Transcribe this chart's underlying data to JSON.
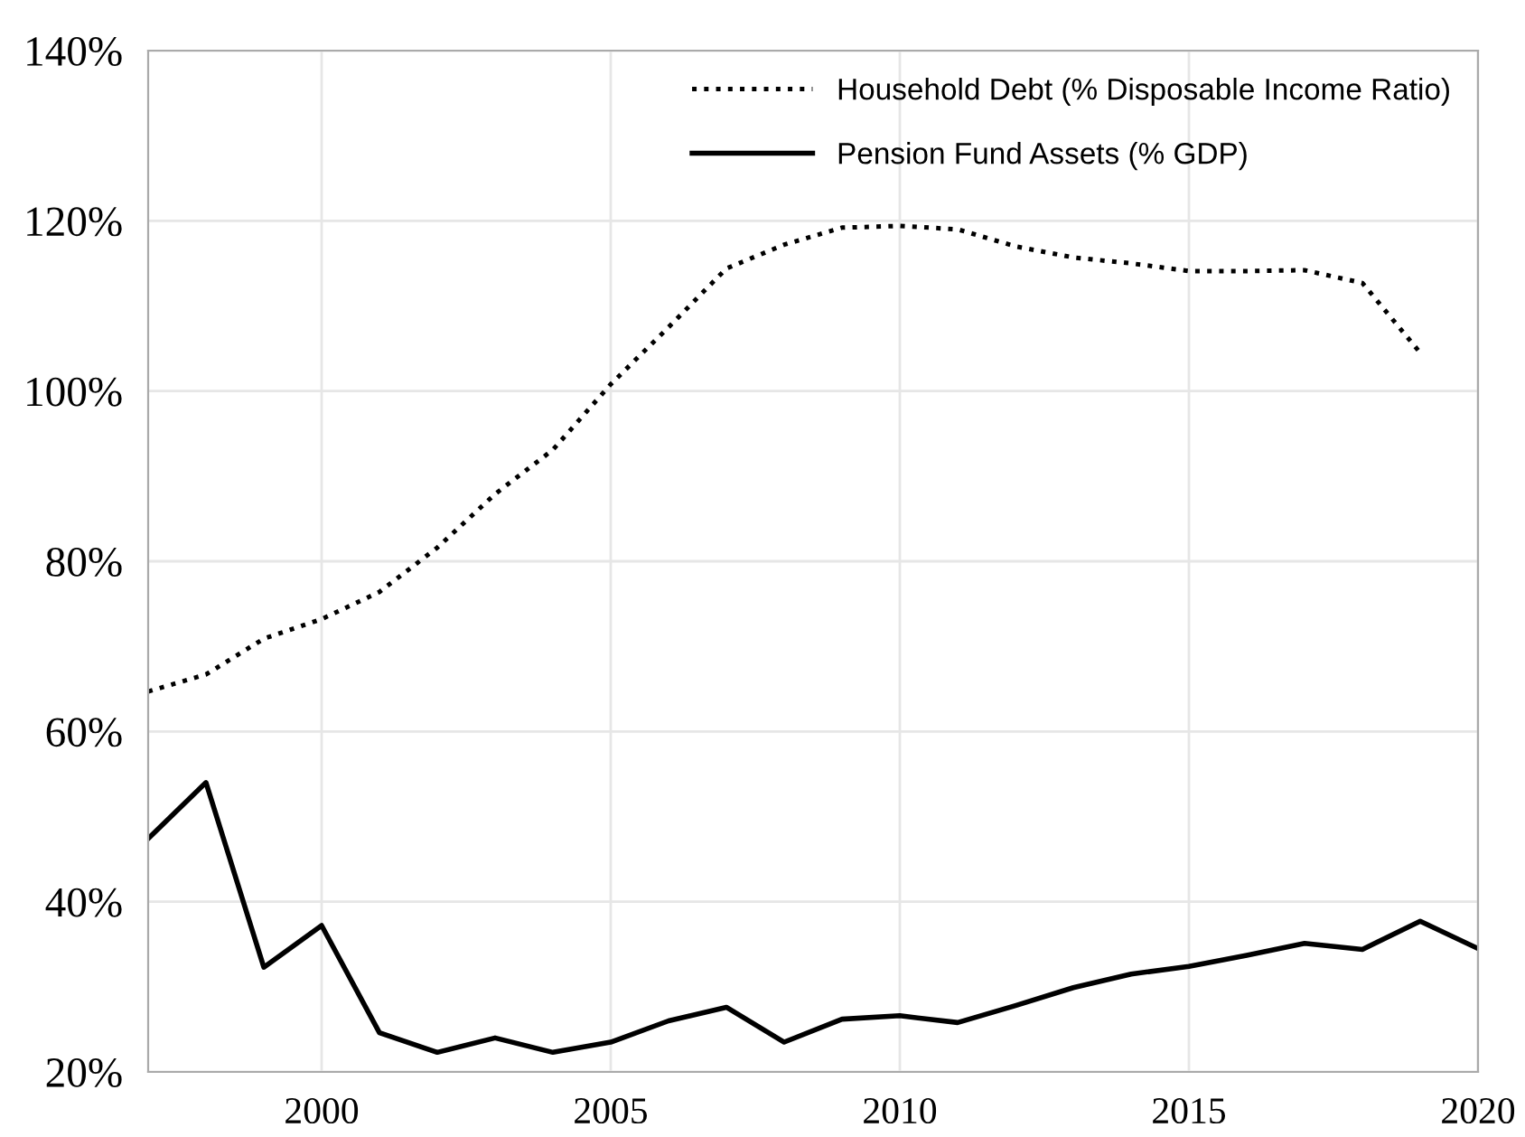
{
  "chart_data": {
    "type": "line",
    "x": [
      1997,
      1998,
      1999,
      2000,
      2001,
      2002,
      2003,
      2004,
      2005,
      2006,
      2007,
      2008,
      2009,
      2010,
      2011,
      2012,
      2013,
      2014,
      2015,
      2016,
      2017,
      2018,
      2019,
      2020
    ],
    "series": [
      {
        "name": "Household Debt (% Disposable Income Ratio)",
        "color": "#000000",
        "line_style": "dotted",
        "values": [
          64.7,
          66.7,
          70.9,
          73.2,
          76.4,
          81.6,
          87.9,
          93.1,
          100.8,
          107.5,
          114.4,
          117.2,
          119.2,
          119.4,
          119.0,
          117.0,
          115.7,
          115.0,
          114.1,
          114.1,
          114.2,
          112.7,
          104.5,
          null
        ]
      },
      {
        "name": "Pension Fund Assets (% GDP)",
        "color": "#000000",
        "line_style": "solid",
        "values": [
          47.4,
          54.0,
          32.3,
          37.2,
          24.6,
          22.3,
          24.0,
          22.3,
          23.5,
          26.0,
          27.6,
          23.5,
          26.2,
          26.6,
          25.8,
          27.8,
          29.9,
          31.5,
          32.4,
          33.7,
          35.1,
          34.4,
          37.7,
          34.5
        ]
      }
    ],
    "xlim": [
      1997,
      2020
    ],
    "xticks": [
      2000,
      2005,
      2010,
      2015,
      2020
    ],
    "ylim": [
      20,
      140
    ],
    "yticks": [
      {
        "value": 20,
        "label": "20%"
      },
      {
        "value": 40,
        "label": "40%"
      },
      {
        "value": 60,
        "label": "60%"
      },
      {
        "value": 80,
        "label": "80%"
      },
      {
        "value": 100,
        "label": "100%"
      },
      {
        "value": 120,
        "label": "120%"
      },
      {
        "value": 140,
        "label": "140%"
      }
    ],
    "grid": true,
    "legend": "top right",
    "marker": "none"
  }
}
